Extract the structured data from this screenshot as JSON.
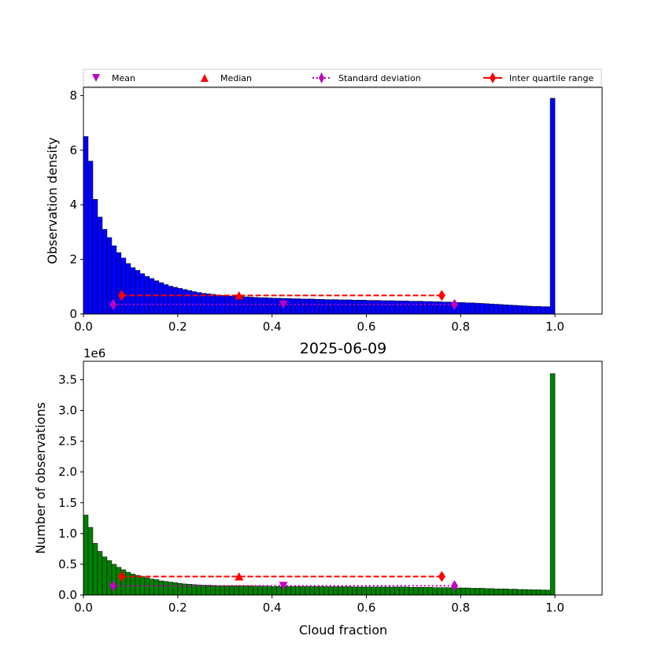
{
  "figure": {
    "title": "2025-06-09",
    "xlabel": "Cloud fraction"
  },
  "legend": {
    "placement": "top, above upper plot, spanning width",
    "items": [
      {
        "label": "Mean",
        "marker": "triangle-down",
        "color": "#bf00bf"
      },
      {
        "label": "Median",
        "marker": "triangle-up",
        "color": "#ff0000"
      },
      {
        "label": "Standard deviation",
        "marker": "thin-diamond",
        "color": "#bf00bf",
        "line": "dotted"
      },
      {
        "label": "Inter quartile range",
        "marker": "thin-diamond",
        "color": "#ff0000",
        "line": "solid"
      }
    ]
  },
  "chart_data": [
    {
      "type": "bar",
      "ylabel": "Observation density",
      "xlim": [
        0,
        1.1
      ],
      "ylim": [
        0,
        8.3
      ],
      "xticks": [
        "0.0",
        "0.2",
        "0.4",
        "0.6",
        "0.8",
        "1.0"
      ],
      "xtick_values": [
        0,
        0.2,
        0.4,
        0.6,
        0.8,
        1.0
      ],
      "yticks": [
        "0",
        "2",
        "4",
        "6",
        "8"
      ],
      "ytick_values": [
        0,
        2,
        4,
        6,
        8
      ],
      "bar_color": "#0000ff",
      "bin_width": 0.01,
      "bin_left_edges_start": 0.0,
      "values": [
        6.5,
        5.6,
        4.2,
        3.55,
        3.1,
        2.8,
        2.5,
        2.25,
        2.05,
        1.85,
        1.7,
        1.6,
        1.48,
        1.38,
        1.3,
        1.22,
        1.15,
        1.08,
        1.02,
        0.98,
        0.94,
        0.9,
        0.86,
        0.82,
        0.79,
        0.76,
        0.74,
        0.72,
        0.7,
        0.68,
        0.67,
        0.66,
        0.65,
        0.64,
        0.63,
        0.62,
        0.61,
        0.6,
        0.6,
        0.59,
        0.58,
        0.58,
        0.57,
        0.57,
        0.56,
        0.56,
        0.55,
        0.55,
        0.55,
        0.54,
        0.54,
        0.53,
        0.53,
        0.53,
        0.52,
        0.52,
        0.52,
        0.51,
        0.51,
        0.51,
        0.5,
        0.5,
        0.5,
        0.49,
        0.49,
        0.49,
        0.48,
        0.48,
        0.48,
        0.47,
        0.47,
        0.47,
        0.46,
        0.46,
        0.45,
        0.45,
        0.44,
        0.44,
        0.43,
        0.42,
        0.42,
        0.41,
        0.41,
        0.4,
        0.39,
        0.38,
        0.37,
        0.36,
        0.35,
        0.34,
        0.33,
        0.32,
        0.31,
        0.3,
        0.29,
        0.28,
        0.28,
        0.27,
        0.27,
        7.9
      ],
      "statistics": {
        "mean": {
          "x": 0.424,
          "y": 0.35
        },
        "median": {
          "x": 0.33,
          "y": 0.68
        },
        "std_range": {
          "x": [
            0.063,
            0.787
          ],
          "y": 0.35
        },
        "iqr_range": {
          "x": [
            0.081,
            0.76
          ],
          "y": 0.68
        }
      }
    },
    {
      "type": "bar",
      "ylabel": "Number of observations",
      "offset_text": "1e6",
      "xlim": [
        0,
        1.1
      ],
      "ylim": [
        0,
        3.8
      ],
      "xticks": [
        "0.0",
        "0.2",
        "0.4",
        "0.6",
        "0.8",
        "1.0"
      ],
      "xtick_values": [
        0,
        0.2,
        0.4,
        0.6,
        0.8,
        1.0
      ],
      "yticks": [
        "0.0",
        "0.5",
        "1.0",
        "1.5",
        "2.0",
        "2.5",
        "3.0",
        "3.5"
      ],
      "ytick_values": [
        0,
        0.5,
        1.0,
        1.5,
        2.0,
        2.5,
        3.0,
        3.5
      ],
      "bar_color": "#008000",
      "bin_width": 0.01,
      "bin_left_edges_start": 0.0,
      "values": [
        1.3,
        1.1,
        0.84,
        0.71,
        0.62,
        0.56,
        0.5,
        0.45,
        0.41,
        0.37,
        0.34,
        0.32,
        0.3,
        0.28,
        0.26,
        0.25,
        0.23,
        0.22,
        0.21,
        0.2,
        0.19,
        0.18,
        0.175,
        0.17,
        0.165,
        0.16,
        0.16,
        0.155,
        0.15,
        0.15,
        0.15,
        0.15,
        0.15,
        0.15,
        0.15,
        0.15,
        0.145,
        0.145,
        0.145,
        0.145,
        0.14,
        0.14,
        0.14,
        0.14,
        0.14,
        0.14,
        0.14,
        0.14,
        0.14,
        0.14,
        0.14,
        0.135,
        0.135,
        0.135,
        0.135,
        0.135,
        0.135,
        0.13,
        0.13,
        0.13,
        0.13,
        0.13,
        0.13,
        0.13,
        0.13,
        0.13,
        0.13,
        0.13,
        0.13,
        0.125,
        0.125,
        0.125,
        0.125,
        0.125,
        0.12,
        0.12,
        0.12,
        0.12,
        0.12,
        0.115,
        0.115,
        0.115,
        0.11,
        0.11,
        0.11,
        0.105,
        0.105,
        0.1,
        0.1,
        0.1,
        0.095,
        0.095,
        0.09,
        0.09,
        0.088,
        0.085,
        0.085,
        0.082,
        0.08,
        3.6
      ],
      "statistics": {
        "mean": {
          "x": 0.424,
          "y": 0.15
        },
        "median": {
          "x": 0.33,
          "y": 0.3
        },
        "std_range": {
          "x": [
            0.063,
            0.787
          ],
          "y": 0.15
        },
        "iqr_range": {
          "x": [
            0.081,
            0.76
          ],
          "y": 0.3
        }
      }
    }
  ]
}
